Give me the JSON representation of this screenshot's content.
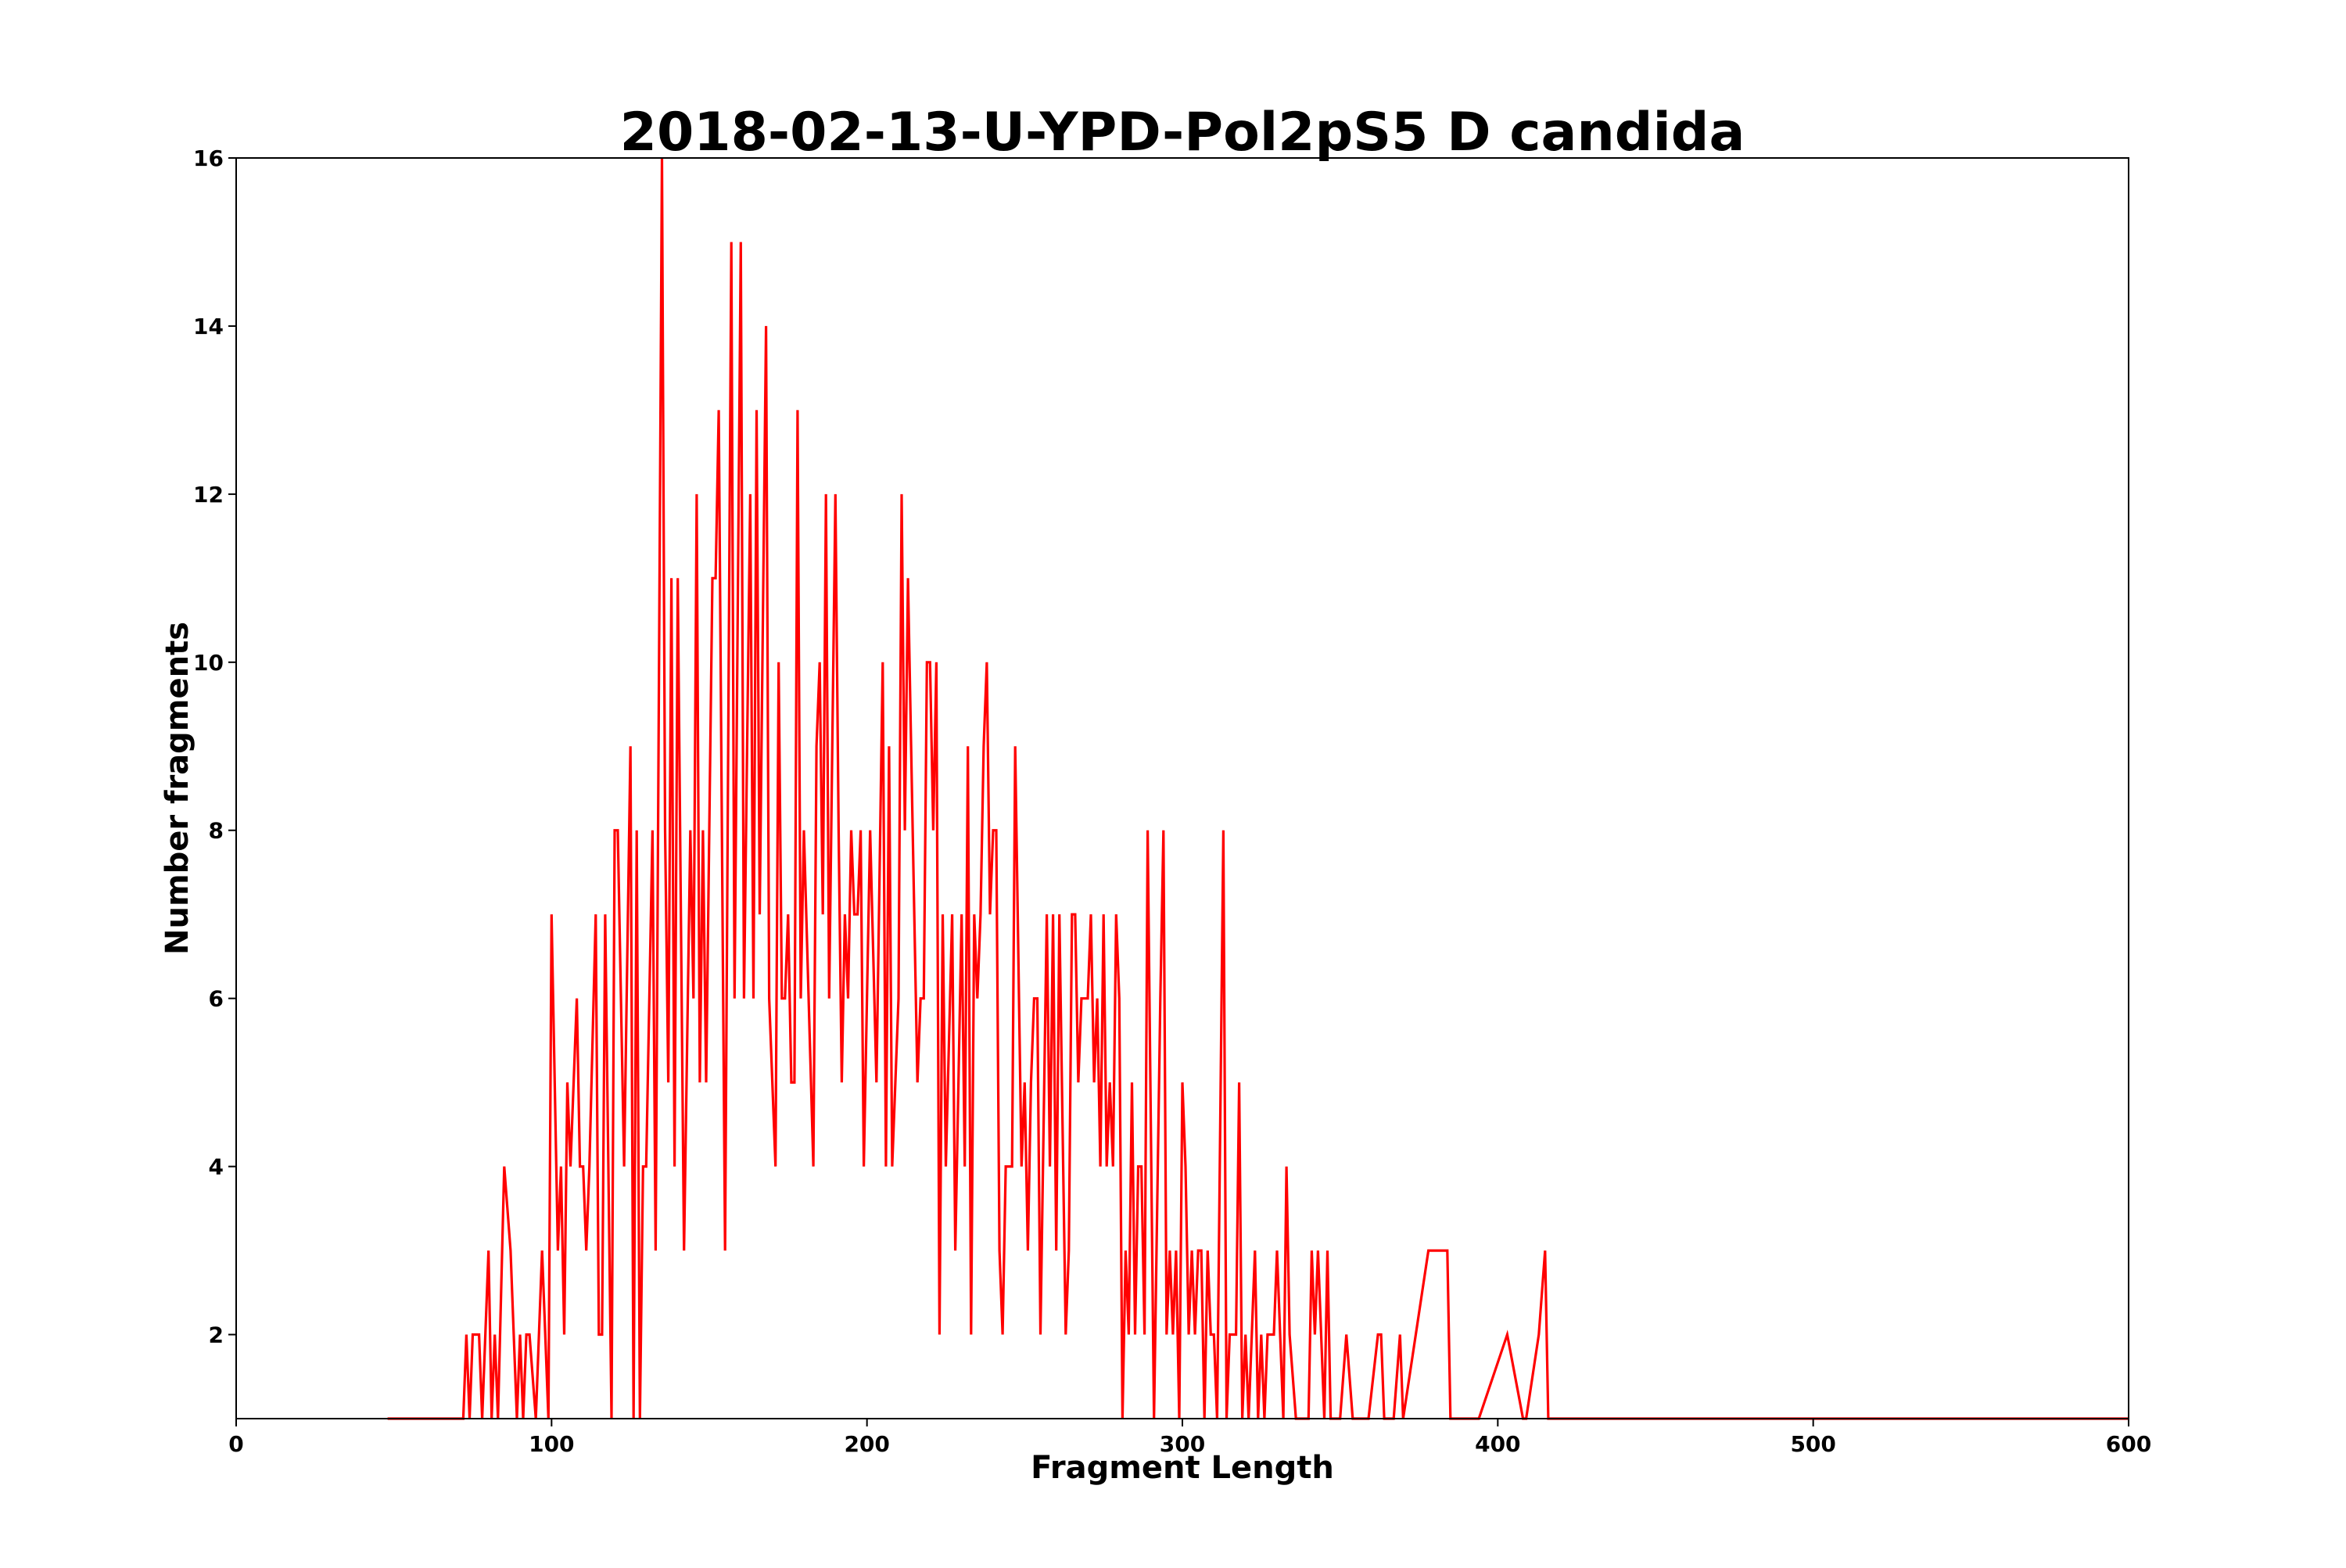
{
  "chart_data": {
    "type": "line",
    "title": "2018-02-13-U-YPD-Pol2pS5 D candida",
    "xlabel": "Fragment Length",
    "ylabel": "Number fragments",
    "xlim": [
      0,
      600
    ],
    "ylim": [
      1,
      16
    ],
    "xticks": [
      0,
      100,
      200,
      300,
      400,
      500,
      600
    ],
    "yticks": [
      2,
      4,
      6,
      8,
      10,
      12,
      14,
      16
    ],
    "grid": false,
    "legend": "none",
    "series": [
      {
        "color": "#ff0000",
        "points": [
          [
            48,
            1
          ],
          [
            72,
            1
          ],
          [
            73,
            2
          ],
          [
            74,
            1
          ],
          [
            75,
            2
          ],
          [
            77,
            2
          ],
          [
            78,
            1
          ],
          [
            80,
            3
          ],
          [
            81,
            1
          ],
          [
            82,
            2
          ],
          [
            83,
            1
          ],
          [
            85,
            4
          ],
          [
            87,
            3
          ],
          [
            89,
            1
          ],
          [
            90,
            2
          ],
          [
            91,
            1
          ],
          [
            92,
            2
          ],
          [
            93,
            2
          ],
          [
            95,
            1
          ],
          [
            97,
            3
          ],
          [
            99,
            1
          ],
          [
            100,
            7
          ],
          [
            102,
            3
          ],
          [
            103,
            4
          ],
          [
            104,
            2
          ],
          [
            105,
            5
          ],
          [
            106,
            4
          ],
          [
            108,
            6
          ],
          [
            109,
            4
          ],
          [
            110,
            4
          ],
          [
            111,
            3
          ],
          [
            112,
            4
          ],
          [
            114,
            7
          ],
          [
            115,
            2
          ],
          [
            116,
            2
          ],
          [
            117,
            7
          ],
          [
            119,
            1
          ],
          [
            120,
            8
          ],
          [
            121,
            8
          ],
          [
            123,
            4
          ],
          [
            125,
            9
          ],
          [
            126,
            1
          ],
          [
            127,
            8
          ],
          [
            128,
            1
          ],
          [
            129,
            4
          ],
          [
            130,
            4
          ],
          [
            132,
            8
          ],
          [
            133,
            3
          ],
          [
            135,
            16
          ],
          [
            136,
            8
          ],
          [
            137,
            5
          ],
          [
            138,
            11
          ],
          [
            139,
            4
          ],
          [
            140,
            11
          ],
          [
            142,
            3
          ],
          [
            144,
            8
          ],
          [
            145,
            6
          ],
          [
            146,
            12
          ],
          [
            147,
            5
          ],
          [
            148,
            8
          ],
          [
            149,
            5
          ],
          [
            151,
            11
          ],
          [
            152,
            11
          ],
          [
            153,
            13
          ],
          [
            155,
            3
          ],
          [
            157,
            15
          ],
          [
            158,
            6
          ],
          [
            160,
            15
          ],
          [
            161,
            6
          ],
          [
            163,
            12
          ],
          [
            164,
            6
          ],
          [
            165,
            13
          ],
          [
            166,
            7
          ],
          [
            168,
            14
          ],
          [
            169,
            6
          ],
          [
            171,
            4
          ],
          [
            172,
            10
          ],
          [
            173,
            6
          ],
          [
            174,
            6
          ],
          [
            175,
            7
          ],
          [
            176,
            5
          ],
          [
            177,
            5
          ],
          [
            178,
            13
          ],
          [
            179,
            6
          ],
          [
            180,
            8
          ],
          [
            183,
            4
          ],
          [
            184,
            9
          ],
          [
            185,
            10
          ],
          [
            186,
            7
          ],
          [
            187,
            12
          ],
          [
            188,
            6
          ],
          [
            190,
            12
          ],
          [
            191,
            8
          ],
          [
            192,
            5
          ],
          [
            193,
            7
          ],
          [
            194,
            6
          ],
          [
            195,
            8
          ],
          [
            196,
            7
          ],
          [
            197,
            7
          ],
          [
            198,
            8
          ],
          [
            199,
            4
          ],
          [
            201,
            8
          ],
          [
            203,
            5
          ],
          [
            205,
            10
          ],
          [
            206,
            4
          ],
          [
            207,
            9
          ],
          [
            208,
            4
          ],
          [
            210,
            6
          ],
          [
            211,
            12
          ],
          [
            212,
            8
          ],
          [
            213,
            11
          ],
          [
            214,
            9
          ],
          [
            216,
            5
          ],
          [
            217,
            6
          ],
          [
            218,
            6
          ],
          [
            219,
            10
          ],
          [
            220,
            10
          ],
          [
            221,
            8
          ],
          [
            222,
            10
          ],
          [
            223,
            2
          ],
          [
            224,
            7
          ],
          [
            225,
            4
          ],
          [
            227,
            7
          ],
          [
            228,
            3
          ],
          [
            230,
            7
          ],
          [
            231,
            4
          ],
          [
            232,
            9
          ],
          [
            233,
            2
          ],
          [
            234,
            7
          ],
          [
            235,
            6
          ],
          [
            236,
            7
          ],
          [
            237,
            9
          ],
          [
            238,
            10
          ],
          [
            239,
            7
          ],
          [
            240,
            8
          ],
          [
            241,
            8
          ],
          [
            242,
            3
          ],
          [
            243,
            2
          ],
          [
            244,
            4
          ],
          [
            246,
            4
          ],
          [
            247,
            9
          ],
          [
            249,
            4
          ],
          [
            250,
            5
          ],
          [
            251,
            3
          ],
          [
            252,
            5
          ],
          [
            253,
            6
          ],
          [
            254,
            6
          ],
          [
            255,
            2
          ],
          [
            257,
            7
          ],
          [
            258,
            4
          ],
          [
            259,
            7
          ],
          [
            260,
            3
          ],
          [
            261,
            7
          ],
          [
            263,
            2
          ],
          [
            264,
            3
          ],
          [
            265,
            7
          ],
          [
            266,
            7
          ],
          [
            267,
            5
          ],
          [
            268,
            6
          ],
          [
            270,
            6
          ],
          [
            271,
            7
          ],
          [
            272,
            5
          ],
          [
            273,
            6
          ],
          [
            274,
            4
          ],
          [
            275,
            7
          ],
          [
            276,
            4
          ],
          [
            277,
            5
          ],
          [
            278,
            4
          ],
          [
            279,
            7
          ],
          [
            280,
            6
          ],
          [
            281,
            1
          ],
          [
            282,
            3
          ],
          [
            283,
            2
          ],
          [
            284,
            5
          ],
          [
            285,
            2
          ],
          [
            286,
            4
          ],
          [
            287,
            4
          ],
          [
            288,
            2
          ],
          [
            289,
            8
          ],
          [
            291,
            1
          ],
          [
            293,
            6
          ],
          [
            294,
            8
          ],
          [
            295,
            2
          ],
          [
            296,
            3
          ],
          [
            297,
            2
          ],
          [
            298,
            3
          ],
          [
            299,
            1
          ],
          [
            300,
            5
          ],
          [
            301,
            4
          ],
          [
            302,
            2
          ],
          [
            303,
            3
          ],
          [
            304,
            2
          ],
          [
            305,
            3
          ],
          [
            306,
            3
          ],
          [
            307,
            1
          ],
          [
            308,
            3
          ],
          [
            309,
            2
          ],
          [
            310,
            2
          ],
          [
            311,
            1
          ],
          [
            313,
            8
          ],
          [
            314,
            1
          ],
          [
            315,
            2
          ],
          [
            317,
            2
          ],
          [
            318,
            5
          ],
          [
            319,
            1
          ],
          [
            320,
            2
          ],
          [
            321,
            1
          ],
          [
            323,
            3
          ],
          [
            324,
            1
          ],
          [
            325,
            2
          ],
          [
            326,
            1
          ],
          [
            327,
            2
          ],
          [
            329,
            2
          ],
          [
            330,
            3
          ],
          [
            331,
            2
          ],
          [
            332,
            1
          ],
          [
            333,
            4
          ],
          [
            334,
            2
          ],
          [
            336,
            1
          ],
          [
            340,
            1
          ],
          [
            341,
            3
          ],
          [
            342,
            2
          ],
          [
            343,
            3
          ],
          [
            345,
            1
          ],
          [
            346,
            3
          ],
          [
            347,
            1
          ],
          [
            350,
            1
          ],
          [
            352,
            2
          ],
          [
            354,
            1
          ],
          [
            359,
            1
          ],
          [
            362,
            2
          ],
          [
            363,
            2
          ],
          [
            364,
            1
          ],
          [
            367,
            1
          ],
          [
            369,
            2
          ],
          [
            370,
            1
          ],
          [
            378,
            3
          ],
          [
            384,
            3
          ],
          [
            385,
            1
          ],
          [
            394,
            1
          ],
          [
            403,
            2
          ],
          [
            408,
            1
          ],
          [
            409,
            1
          ],
          [
            413,
            2
          ],
          [
            415,
            3
          ],
          [
            416,
            1
          ],
          [
            600,
            1
          ]
        ]
      }
    ]
  }
}
